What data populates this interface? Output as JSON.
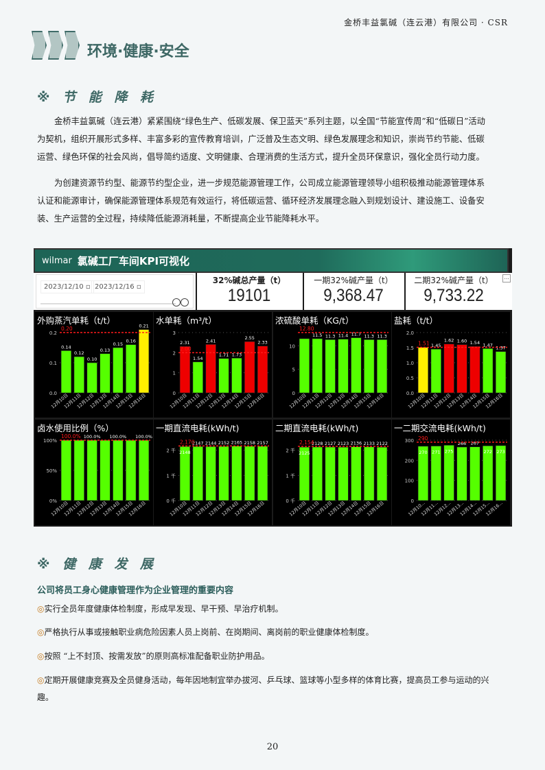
{
  "header": {
    "company": "金桥丰益氯碱（连云港）有限公司 · CSR",
    "section_title": "环境·健康·安全"
  },
  "energy": {
    "title": "※ 节 能 降 耗",
    "paragraphs": [
      "金桥丰益氯碱（连云港）紧紧围绕“绿色生产、低碳发展、保卫蓝天”系列主题，以全国“节能宣传周”和“低碳日”活动为契机，组织开展形式多样、丰富多彩的宣传教育培训，广泛普及生态文明、绿色发展理念和知识，崇尚节约节能、低碳运营、绿色环保的社会风尚，倡导简约适度、文明健康、合理消费的生活方式，提升全员环保意识，强化全员行动力度。",
      "为创建资源节约型、能源节约型企业，进一步规范能源管理工作，公司成立能源管理领导小组积极推动能源管理体系认证和能源审计，确保能源管理体系规范有效运行，将低碳运营、循环经济发展理念融入到规划设计、建设施工、设备安装、生产运营的全过程，持续降低能源消耗量，不断提高企业节能降耗水平。"
    ]
  },
  "dashboard": {
    "logo": "wilmar",
    "title": "氯碱工厂车间KPI可视化",
    "date_start": "2023/12/10",
    "date_end": "2023/12/16",
    "more": "...",
    "kpis": [
      {
        "label": "32%碱总产量（t）",
        "value": "19101"
      },
      {
        "label": "一期32%碱产量（t）",
        "value": "9,368.47"
      },
      {
        "label": "二期32%碱产量（t）",
        "value": "9,733.22"
      }
    ]
  },
  "colors": {
    "green": "#55ff00",
    "red": "#ee0000",
    "yellow": "#ffee00",
    "target": "#ff1a1a"
  },
  "chart_data": [
    {
      "type": "bar",
      "title": "外购蒸汽单耗（t/t）",
      "categories": [
        "12月10日",
        "12月11日",
        "12月12日",
        "12月13日",
        "12月14日",
        "12月15日",
        "12月16日"
      ],
      "values": [
        0.14,
        0.12,
        0.1,
        0.13,
        0.15,
        0.16,
        0.21
      ],
      "labels": [
        "0.14",
        "0.12",
        "0.10",
        "0.13",
        "0.15",
        "0.16",
        "0.21"
      ],
      "bar_colors": [
        "green",
        "green",
        "green",
        "green",
        "green",
        "green",
        "yellow"
      ],
      "target": 0.2,
      "target_label": "0.20",
      "ylim": [
        0,
        0.2
      ],
      "yticks": [
        "0.0",
        "0.1",
        "0.2"
      ],
      "ytick_values": [
        0,
        0.1,
        0.2
      ]
    },
    {
      "type": "bar",
      "title": "水单耗（m³/t）",
      "categories": [
        "12月10日",
        "12月11日",
        "12月12日",
        "12月13日",
        "12月14日",
        "12月15日",
        "12月16日"
      ],
      "values": [
        2.31,
        1.54,
        2.41,
        1.71,
        1.73,
        2.55,
        2.33
      ],
      "labels": [
        "2.31",
        "1.54",
        "2.41",
        "1.71",
        "1.73",
        "2.55",
        "2.33"
      ],
      "bar_colors": [
        "red",
        "green",
        "red",
        "green",
        "green",
        "red",
        "red"
      ],
      "target": 2.0,
      "target_label": "2.00",
      "ylim": [
        0,
        3
      ],
      "yticks": [
        "0",
        "1",
        "2",
        "3"
      ],
      "ytick_values": [
        0,
        1,
        2,
        3
      ]
    },
    {
      "type": "bar",
      "title": "浓硫酸单耗（KG/t）",
      "categories": [
        "12月10日",
        "12月11日",
        "12月12日",
        "12月13日",
        "12月14日",
        "12月15日",
        "12月16日"
      ],
      "values": [
        11.5,
        11.5,
        11.3,
        11.4,
        11.7,
        11.3,
        11.3
      ],
      "labels": [
        "",
        "11.5",
        "11.3",
        "11.4",
        "11.7",
        "11.3",
        "11.3"
      ],
      "bar_colors": [
        "green",
        "green",
        "green",
        "green",
        "green",
        "green",
        "green"
      ],
      "target": 12.8,
      "target_label": "12.80",
      "ylim": [
        0,
        12.8
      ],
      "yticks": [
        "0",
        "5",
        "10"
      ],
      "ytick_values": [
        0,
        5,
        10
      ]
    },
    {
      "type": "bar",
      "title": "盐耗（t/t）",
      "categories": [
        "12月10日",
        "12月11日",
        "12月12日",
        "12月13日",
        "12月14日",
        "12月15日",
        "12月16日"
      ],
      "values": [
        1.51,
        1.45,
        1.62,
        1.6,
        1.54,
        1.47,
        1.37
      ],
      "labels": [
        "",
        "1.45",
        "1.62",
        "1.60",
        "1.54",
        "1.47",
        "1.37"
      ],
      "bar_colors": [
        "yellow",
        "green",
        "red",
        "red",
        "red",
        "green",
        "green"
      ],
      "target": 1.51,
      "target_label": "1.51",
      "ylim": [
        0,
        2.0
      ],
      "yticks": [
        "0.0",
        "0.5",
        "1.0",
        "1.5",
        "2.0"
      ],
      "ytick_values": [
        0,
        0.5,
        1,
        1.5,
        2
      ]
    },
    {
      "type": "bar",
      "title": "卤水使用比例（%）",
      "categories": [
        "12月10日",
        "12月11日",
        "12月12日",
        "12月13日",
        "12月14日",
        "12月15日",
        "12月16日"
      ],
      "values": [
        100,
        100,
        100,
        100,
        100,
        100,
        100
      ],
      "labels": [
        "",
        "",
        "100.0%",
        "",
        "100.0%",
        "",
        "100.0%"
      ],
      "bar_colors": [
        "green",
        "green",
        "green",
        "green",
        "green",
        "green",
        "green"
      ],
      "target": 100,
      "target_label": "100.0%",
      "ylim": [
        0,
        100
      ],
      "yticks": [
        "0%",
        "50%",
        "100%"
      ],
      "ytick_values": [
        0,
        50,
        100
      ]
    },
    {
      "type": "bar",
      "title": "一期直流电耗(kWh/t)",
      "categories": [
        "12月10日",
        "12月11日",
        "12月12日",
        "12月13日",
        "12月14日",
        "12月15日",
        "12月16日"
      ],
      "values": [
        2148,
        2147,
        2144,
        2152,
        2165,
        2158,
        2157
      ],
      "labels": [
        "2148",
        "2147",
        "2144",
        "2152",
        "2165",
        "2158",
        "2157"
      ],
      "inside_first": true,
      "bar_colors": [
        "green",
        "green",
        "green",
        "green",
        "green",
        "green",
        "green"
      ],
      "target": 2170,
      "target_label": "2,170",
      "ylim": [
        0,
        2400
      ],
      "yticks": [
        "0 千",
        "1 千",
        "2 千"
      ],
      "ytick_values": [
        0,
        1000,
        2000
      ]
    },
    {
      "type": "bar",
      "title": "二期直流电耗(kWh/t)",
      "categories": [
        "12月10日",
        "12月11日",
        "12月12日",
        "12月13日",
        "12月14日",
        "12月15日",
        "12月16日"
      ],
      "values": [
        2125,
        2128,
        2127,
        2123,
        2136,
        2133,
        2122
      ],
      "labels": [
        "2125",
        "2128",
        "2127",
        "2123",
        "2136",
        "2133",
        "2122"
      ],
      "inside_first": true,
      "bar_colors": [
        "green",
        "green",
        "green",
        "green",
        "green",
        "green",
        "green"
      ],
      "target": 2154,
      "target_label": "2,154",
      "ylim": [
        0,
        2400
      ],
      "yticks": [
        "0 千",
        "1 千",
        "2 千"
      ],
      "ytick_values": [
        0,
        1000,
        2000
      ]
    },
    {
      "type": "bar",
      "title": "一二期交流电耗(kWh/t)",
      "categories": [
        "12月10...",
        "12月11...",
        "12月12...",
        "12月13...",
        "12月14...",
        "12月15...",
        "12月16..."
      ],
      "values": [
        270,
        271,
        275,
        266,
        267,
        272,
        273
      ],
      "labels": [
        "270",
        "271",
        "275",
        "266",
        "267",
        "272",
        "273"
      ],
      "inside": [
        true,
        true,
        true,
        false,
        false,
        true,
        true
      ],
      "bar_colors": [
        "green",
        "green",
        "green",
        "green",
        "green",
        "green",
        "green"
      ],
      "target": 290,
      "target_label": "290",
      "ylim": [
        0,
        300
      ],
      "yticks": [
        "0",
        "100",
        "200",
        "300"
      ],
      "ytick_values": [
        0,
        100,
        200,
        300
      ]
    }
  ],
  "health": {
    "title": "※ 健 康 发 展",
    "heading": "公司将员工身心健康管理作为企业管理的重要内容",
    "bullet": "◎",
    "items": [
      "实行全员年度健康体检制度，形成早发现、早干预、早治疗机制。",
      "严格执行从事或接触职业病危险因素人员上岗前、在岗期间、离岗前的职业健康体检制度。",
      "按照 “上不封顶、按需发放”的原则高标准配备职业防护用品。",
      "定期开展健康竞赛及全员健身活动，每年因地制宜举办拔河、乒乓球、篮球等小型多样的体育比赛，提高员工参与运动的兴趣。"
    ]
  },
  "page_number": "20"
}
